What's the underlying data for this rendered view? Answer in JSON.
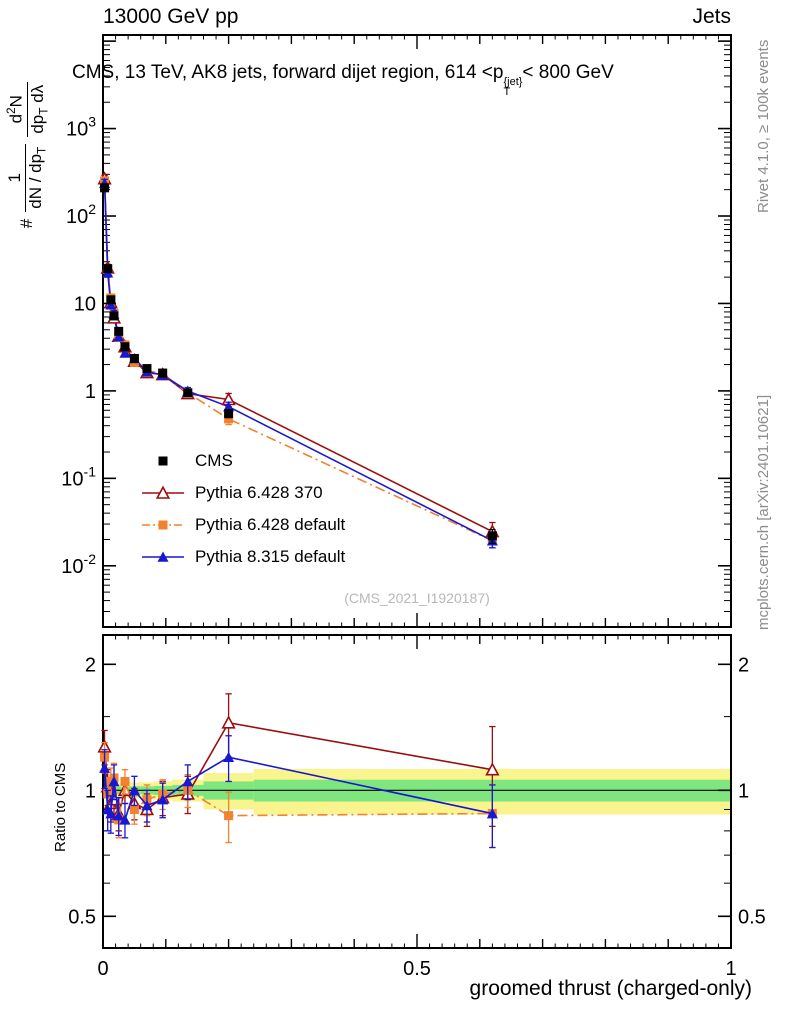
{
  "header": {
    "left": "13000 GeV pp",
    "right": "Jets"
  },
  "title": {
    "text": "CMS, 13 TeV, AK8 jets, forward dijet region, 614 <p",
    "sup": "{jet}",
    "sub": "T",
    "tail": "< 800 GeV"
  },
  "watermark": "(CMS_2021_I1920187)",
  "side_texts": {
    "top_right": "Rivet 4.1.0, ≥ 100k events",
    "bottom_right": "mcplots.cern.ch [arXiv:2401.10621]"
  },
  "labels": {
    "ylabel": {
      "prefix": "#",
      "f1num": "1",
      "f1den": "dN / dp",
      "f1densub": "T",
      "f2num": "d",
      "f2numsup": "2",
      "f2numb": "N",
      "f2den": "dp",
      "f2densub": "T",
      "f2denb": " dλ"
    },
    "ratio_ylabel": "Ratio to CMS",
    "xlabel": "groomed thrust (charged-only)"
  },
  "chart_data": {
    "type": "line",
    "title": "CMS, 13 TeV, AK8 jets, forward dijet region, 614 <p_T^{jet}< 800 GeV",
    "xlabel": "groomed thrust (charged-only)",
    "ylabel": "# 1/(dN/dp_T) d2N/(dp_T dλ)",
    "ratio_label": "Ratio to CMS",
    "x": [
      0.0025,
      0.0075,
      0.0125,
      0.0175,
      0.025,
      0.035,
      0.05,
      0.07,
      0.095,
      0.135,
      0.2,
      0.62
    ],
    "bin_edges": [
      0,
      0.005,
      0.01,
      0.015,
      0.02,
      0.03,
      0.04,
      0.06,
      0.08,
      0.11,
      0.16,
      0.24,
      1.0
    ],
    "series": [
      {
        "name": "CMS",
        "marker": "square-filled",
        "color": "#000000",
        "line": "none",
        "values": [
          210,
          25,
          11,
          7.2,
          4.8,
          3.2,
          2.35,
          1.8,
          1.6,
          0.95,
          0.55,
          0.022
        ],
        "yerr_frac": [
          0.04,
          0.04,
          0.04,
          0.04,
          0.05,
          0.05,
          0.05,
          0.05,
          0.06,
          0.07,
          0.1,
          0.18
        ]
      },
      {
        "name": "Pythia 6.428 370",
        "marker": "triangle-open",
        "color": "#9c0e0e",
        "line": "solid",
        "ratio": [
          1.27,
          1.02,
          0.93,
          0.95,
          0.88,
          1.0,
          0.93,
          0.9,
          0.96,
          0.98,
          1.45,
          1.12
        ],
        "ratio_err": [
          0.12,
          0.1,
          0.09,
          0.1,
          0.08,
          0.07,
          0.08,
          0.08,
          0.09,
          0.1,
          0.25,
          0.3
        ]
      },
      {
        "name": "Pythia 6.428 default",
        "marker": "square-filled",
        "color": "#f28130",
        "line": "dashdot",
        "ratio": [
          1.2,
          0.98,
          1.05,
          1.07,
          0.85,
          1.05,
          0.9,
          0.95,
          0.98,
          1.0,
          0.87,
          0.88
        ],
        "ratio_err": [
          0.1,
          0.09,
          0.08,
          0.09,
          0.08,
          0.07,
          0.07,
          0.08,
          0.08,
          0.09,
          0.12,
          0.15
        ]
      },
      {
        "name": "Pythia 8.315 default",
        "marker": "triangle-filled",
        "color": "#1717d4",
        "line": "solid",
        "ratio": [
          1.13,
          0.9,
          0.88,
          1.05,
          0.87,
          0.85,
          1.0,
          0.92,
          0.95,
          1.05,
          1.2,
          0.88
        ],
        "ratio_err": [
          0.12,
          0.1,
          0.09,
          0.1,
          0.09,
          0.08,
          0.08,
          0.08,
          0.09,
          0.1,
          0.15,
          0.15
        ]
      }
    ],
    "bands": {
      "yellow": [
        0.035,
        0.035,
        0.035,
        0.04,
        0.04,
        0.04,
        0.045,
        0.045,
        0.05,
        0.06,
        0.1,
        0.125
      ],
      "green": [
        0.018,
        0.018,
        0.018,
        0.02,
        0.02,
        0.02,
        0.022,
        0.022,
        0.025,
        0.03,
        0.05,
        0.06
      ],
      "color_yellow": "#faf48f",
      "color_green": "#7fe57f"
    },
    "axes": {
      "x": {
        "min": 0,
        "max": 1,
        "major": [
          0,
          0.5,
          1
        ],
        "labels": [
          "0",
          "0.5",
          "1"
        ]
      },
      "y_main": {
        "scale": "log",
        "exp_ticks": [
          3,
          2,
          1,
          0,
          -1,
          -2
        ],
        "log_min": -2.7,
        "log_max": 4.07
      },
      "y_ratio": {
        "scale": "log",
        "min": 0.42,
        "max": 2.35,
        "ticks": [
          2,
          1,
          0.5
        ],
        "labels": [
          "2",
          "1",
          "0.5"
        ],
        "minor": [
          0.6,
          0.7,
          0.8,
          0.9,
          1.5
        ]
      }
    },
    "legend_position": "middle-left"
  }
}
